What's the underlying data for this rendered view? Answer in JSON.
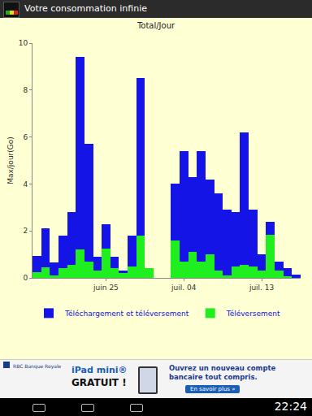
{
  "screen": {
    "app_title": "Votre consommation infinie",
    "ad": {
      "bank": "RBC Banque Royale",
      "headline": "iPad mini®",
      "headline2": "GRATUIT !",
      "text": "Ouvrez un nouveau compte bancaire tout compris.",
      "button": "En savoir plus »"
    },
    "clock": "22:24"
  },
  "chart_data": {
    "type": "bar",
    "title": "Total/Jour",
    "y_label": "Max/jour(Go)",
    "categories": [
      null,
      null,
      null,
      null,
      null,
      null,
      null,
      null,
      "juin 25",
      null,
      null,
      null,
      null,
      null,
      null,
      null,
      null,
      "juil. 04",
      null,
      null,
      null,
      null,
      null,
      null,
      null,
      null,
      "juil. 13",
      null,
      null,
      null,
      null
    ],
    "series": [
      {
        "name": "Téléchargement et téléversement",
        "color": "#1414e6",
        "values": [
          0.95,
          2.1,
          0.65,
          1.8,
          2.8,
          9.4,
          5.7,
          0.9,
          2.3,
          0.9,
          0.3,
          1.8,
          8.5,
          0.4,
          0,
          0,
          4.0,
          5.4,
          4.3,
          5.4,
          4.2,
          3.6,
          2.9,
          2.8,
          6.2,
          2.9,
          1.0,
          2.4,
          0.7,
          0.4,
          0.15
        ]
      },
      {
        "name": "Téléversement",
        "color": "#1fef1f",
        "values": [
          0.25,
          0.45,
          0.1,
          0.4,
          0.55,
          1.2,
          0.7,
          0.3,
          1.25,
          0.4,
          0.2,
          0.5,
          1.8,
          0.4,
          0,
          0,
          1.6,
          0.7,
          1.1,
          0.7,
          1.0,
          0.3,
          0.1,
          0.5,
          0.55,
          0.5,
          0.3,
          1.85,
          0.3,
          0.05,
          0
        ]
      }
    ],
    "ylim": [
      0,
      10
    ],
    "yticks": [
      0,
      2,
      4,
      6,
      8,
      10
    ],
    "grid": false,
    "stacked": false,
    "legend": "bottom"
  }
}
